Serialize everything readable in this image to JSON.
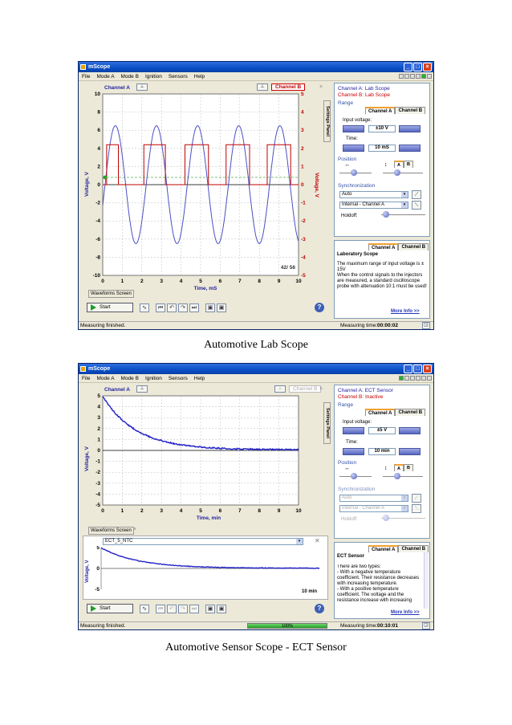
{
  "app_title": "mScope",
  "menu": [
    "File",
    "Mode A",
    "Mode B",
    "Ignition",
    "Sensors",
    "Help"
  ],
  "window1": {
    "channel_a_label": "Channel A",
    "channel_b_label": "Channel B",
    "waveforms_tab": "Waveforms Screen",
    "settings_panel": "Settings Panel",
    "y_left_label": "Voltage, V",
    "y_right_label": "Voltage, V",
    "x_label": "Time, mS",
    "y_left_ticks": [
      "10",
      "8",
      "6",
      "4",
      "2",
      "0",
      "-2",
      "-4",
      "-6",
      "-8",
      "-10"
    ],
    "y_right_ticks": [
      "5",
      "4",
      "3",
      "2",
      "1",
      "0",
      "-1",
      "-2",
      "-3",
      "-4",
      "-5"
    ],
    "x_ticks": [
      "0",
      "1",
      "2",
      "3",
      "4",
      "5",
      "6",
      "7",
      "8",
      "9",
      "10"
    ],
    "frame_counter": "42/ 56",
    "start_label": "Start",
    "status_left": "Measuring finished.",
    "status_right_label": "Measuring time:",
    "status_right_value": "00:00:02",
    "side": {
      "ch_a_title": "Channel A: Lab Scope",
      "ch_b_title": "Channel B: Lab Scope",
      "range_label": "Range",
      "tab_a": "Channel A",
      "tab_b": "Channel B",
      "input_voltage_label": "Input voltage:",
      "input_voltage_value": "±10 V",
      "time_label": "Time:",
      "time_value": "10 mS",
      "position_label": "Position",
      "pos_a": "A",
      "pos_b": "B",
      "sync_label": "Synchronization",
      "sync_mode": "Auto",
      "sync_source": "Internal - Channel A",
      "holdoff_label": "Holdoff:",
      "info_tab_a": "Channel A",
      "info_tab_b": "Channel B",
      "info_title": "Laboratory Scope",
      "info_text": "The maximum range of input voltage is ± 15V\nWhen the control signals to the injectors are measured, a standard oscilloscope probe with attenuation 10:1 must be used!",
      "more_info": "More Info >>"
    },
    "caption": "Automotive Lab Scope"
  },
  "window2": {
    "channel_a_label": "Channel A",
    "channel_b_label": "Channel B",
    "waveforms_tab": "Waveforms Screen",
    "settings_panel": "Settings Panel",
    "y_left_label": "Voltage, V",
    "x_label": "Time, min",
    "y_ticks": [
      "5",
      "4",
      "3",
      "2",
      "1",
      "0",
      "-1",
      "-2",
      "-3",
      "-4",
      "-5"
    ],
    "x_ticks": [
      "0",
      "1",
      "2",
      "3",
      "4",
      "5",
      "6",
      "7",
      "8",
      "9",
      "10"
    ],
    "overview_file": "ECT_5_NTC",
    "overview_y_label": "Voltage, V",
    "overview_ticks": [
      "5",
      "0",
      "-5"
    ],
    "overview_time": "10 min",
    "start_label": "Start",
    "status_left": "Measuring finished.",
    "progress_text": "100%",
    "progress_value": 1.0,
    "status_right_label": "Measuring time:",
    "status_right_value": "00:10:01",
    "side": {
      "ch_a_title": "Channel A: ECT Sensor",
      "ch_b_title": "Channel B: Inactive",
      "range_label": "Range",
      "tab_a": "Channel A",
      "tab_b": "Channel B",
      "input_voltage_label": "Input voltage:",
      "input_voltage_value": "±5 V",
      "time_label": "Time:",
      "time_value": "10 min",
      "position_label": "Position",
      "pos_a": "A",
      "pos_b": "B",
      "sync_label": "Synchronization",
      "sync_mode": "Auto",
      "sync_source": "Internal - Channel A",
      "holdoff_label": "Holdoff:",
      "info_tab_a": "Channel A",
      "info_tab_b": "Channel B",
      "info_title": "ECT Sensor",
      "info_text": "There are two types:\n- With a negative temperature coefficient. Their resistance decreases with increasing temperature.\n- With a positive temperature coefficient. The voltage and the resistance increase with increasing",
      "more_info": "More Info >>"
    },
    "caption": "Automotive Sensor Scope - ECT Sensor"
  },
  "colors": {
    "channel_a": "#4b4fc4",
    "channel_b": "#c00000",
    "title_bar": "#0a4fc4"
  }
}
